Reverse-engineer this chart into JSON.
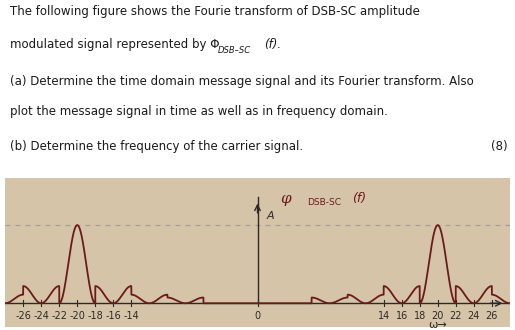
{
  "text_line1": "The following figure shows the Fourie transform of DSB-SC amplitude",
  "text_line2": "modulated signal represented by Φ",
  "text_line2b": "DSB–SC",
  "text_line2c": "(f).",
  "text_parta1": "(a) Determine the time domain message signal and its Fourier transform. Also",
  "text_parta2": "plot the message signal in time as well as in frequency domain.",
  "text_partb": "(b) Determine the frequency of the carrier signal.",
  "text_marks": "(8)",
  "plot_ylabel": "φ",
  "plot_ylabel_sub": "DSB-SC",
  "plot_ylabel_arg": "(f)",
  "amplitude_label": "A",
  "omega_label": "ω→",
  "xticks": [
    -26,
    -24,
    -22,
    -20,
    -18,
    -16,
    -14,
    0,
    14,
    16,
    18,
    20,
    22,
    24,
    26
  ],
  "carrier_freq": 20,
  "message_bw": 4,
  "side_lobe_bw": 2,
  "amplitude": 1.0,
  "bg_color": "#d6c4a8",
  "curve_color": "#6b1a1a",
  "axis_color": "#2a2a2a",
  "text_color": "#1a1a1a",
  "dashed_color": "#999999",
  "xlim": [
    -28,
    28
  ],
  "ylim": [
    -0.3,
    1.6
  ],
  "font_size_body": 8.5,
  "font_size_tick": 7,
  "font_size_plot_label": 9
}
